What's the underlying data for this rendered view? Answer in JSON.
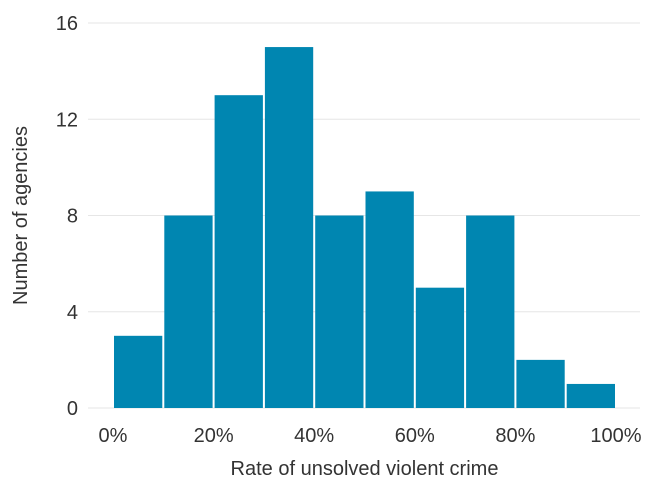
{
  "chart_data": {
    "type": "bar",
    "title": "",
    "xlabel": "Rate of unsolved violent crime",
    "ylabel": "Number of agencies",
    "bins": [
      {
        "start": 0,
        "end": 10,
        "value": 3
      },
      {
        "start": 10,
        "end": 20,
        "value": 8
      },
      {
        "start": 20,
        "end": 30,
        "value": 13
      },
      {
        "start": 30,
        "end": 40,
        "value": 15
      },
      {
        "start": 40,
        "end": 50,
        "value": 8
      },
      {
        "start": 50,
        "end": 60,
        "value": 9
      },
      {
        "start": 60,
        "end": 70,
        "value": 5
      },
      {
        "start": 70,
        "end": 80,
        "value": 8
      },
      {
        "start": 80,
        "end": 90,
        "value": 2
      },
      {
        "start": 90,
        "end": 100,
        "value": 1
      }
    ],
    "xlim": [
      0,
      100
    ],
    "ylim": [
      0,
      16
    ],
    "x_ticks": [
      {
        "value": 0,
        "label": "0%"
      },
      {
        "value": 20,
        "label": "20%"
      },
      {
        "value": 40,
        "label": "40%"
      },
      {
        "value": 60,
        "label": "60%"
      },
      {
        "value": 80,
        "label": "80%"
      },
      {
        "value": 100,
        "label": "100%"
      }
    ],
    "y_ticks": [
      {
        "value": 0,
        "label": "0"
      },
      {
        "value": 4,
        "label": "4"
      },
      {
        "value": 8,
        "label": "8"
      },
      {
        "value": 12,
        "label": "12"
      },
      {
        "value": 16,
        "label": "16"
      }
    ],
    "grid": "horizontal",
    "bar_color": "#0086b1",
    "grid_color": "#e6e6e6"
  }
}
